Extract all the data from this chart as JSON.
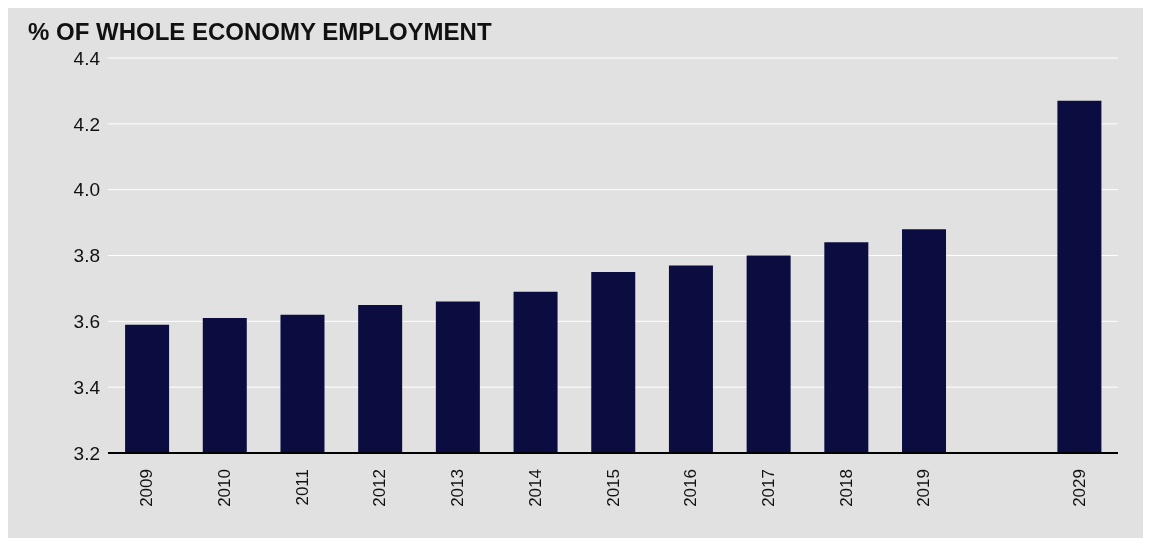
{
  "chart_data": {
    "type": "bar",
    "title": "% OF WHOLE ECONOMY EMPLOYMENT",
    "categories": [
      "2009",
      "2010",
      "2011",
      "2012",
      "2013",
      "2014",
      "2015",
      "2016",
      "2017",
      "2018",
      "2019",
      null,
      "2029"
    ],
    "values": [
      3.59,
      3.61,
      3.62,
      3.65,
      3.66,
      3.69,
      3.75,
      3.77,
      3.8,
      3.84,
      3.88,
      null,
      4.27
    ],
    "color": "#0b0c3f",
    "ylim": [
      3.2,
      4.4
    ],
    "yticks": [
      3.2,
      3.4,
      3.6,
      3.8,
      {
        "value": 4,
        "label": "4.0"
      },
      4.2,
      4.4
    ],
    "grid": "y"
  }
}
